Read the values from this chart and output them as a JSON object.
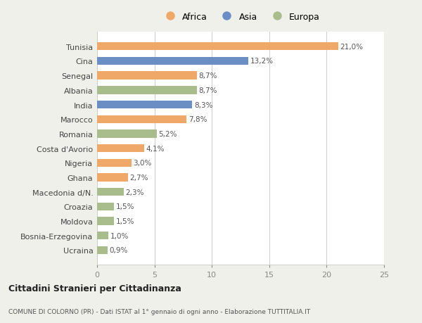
{
  "countries": [
    "Tunisia",
    "Cina",
    "Senegal",
    "Albania",
    "India",
    "Marocco",
    "Romania",
    "Costa d'Avorio",
    "Nigeria",
    "Ghana",
    "Macedonia d/N.",
    "Croazia",
    "Moldova",
    "Bosnia-Erzegovina",
    "Ucraina"
  ],
  "values": [
    21.0,
    13.2,
    8.7,
    8.7,
    8.3,
    7.8,
    5.2,
    4.1,
    3.0,
    2.7,
    2.3,
    1.5,
    1.5,
    1.0,
    0.9
  ],
  "labels": [
    "21,0%",
    "13,2%",
    "8,7%",
    "8,7%",
    "8,3%",
    "7,8%",
    "5,2%",
    "4,1%",
    "3,0%",
    "2,7%",
    "2,3%",
    "1,5%",
    "1,5%",
    "1,0%",
    "0,9%"
  ],
  "colors": [
    "#f0a868",
    "#6b8ec4",
    "#f0a868",
    "#a8bc8c",
    "#6b8ec4",
    "#f0a868",
    "#a8bc8c",
    "#f0a868",
    "#f0a868",
    "#f0a868",
    "#a8bc8c",
    "#a8bc8c",
    "#a8bc8c",
    "#a8bc8c",
    "#a8bc8c"
  ],
  "legend_labels": [
    "Africa",
    "Asia",
    "Europa"
  ],
  "legend_colors": [
    "#f0a868",
    "#6b8ec4",
    "#a8bc8c"
  ],
  "xlim": [
    0,
    25
  ],
  "xticks": [
    0,
    5,
    10,
    15,
    20,
    25
  ],
  "title1": "Cittadini Stranieri per Cittadinanza",
  "title2": "COMUNE DI COLORNO (PR) - Dati ISTAT al 1° gennaio di ogni anno - Elaborazione TUTTITALIA.IT",
  "bg_color": "#f0f0eb",
  "bar_bg_color": "#ffffff"
}
